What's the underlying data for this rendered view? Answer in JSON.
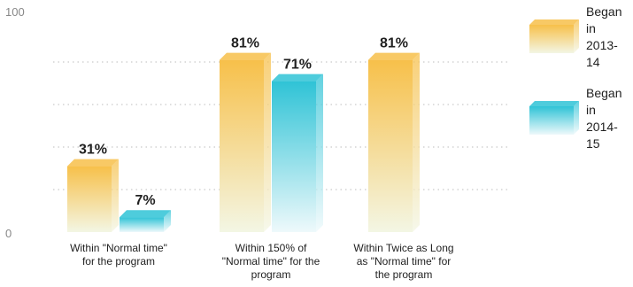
{
  "chart_data": {
    "type": "bar",
    "title": "",
    "xlabel": "",
    "ylabel": "",
    "ylim": [
      0,
      100
    ],
    "yticks": [
      0,
      100
    ],
    "grid": true,
    "legend_position": "right",
    "categories": [
      [
        "Within \"Normal time\"",
        "for the program"
      ],
      [
        "Within 150% of",
        "\"Normal time\" for the",
        "program"
      ],
      [
        "Within Twice as Long",
        "as \"Normal time\" for",
        "the program"
      ]
    ],
    "series": [
      {
        "name": [
          "Began",
          "in",
          "2013-",
          "14"
        ],
        "color_top": "#f7c04a",
        "color_bottom": "#f3f6e4",
        "values": [
          31,
          81,
          81
        ],
        "labels": [
          "31%",
          "81%",
          "81%"
        ]
      },
      {
        "name": [
          "Began",
          "in",
          "2014-",
          "15"
        ],
        "color_top": "#2fc3d6",
        "color_bottom": "#eef9fb",
        "values": [
          7,
          71,
          null
        ],
        "labels": [
          "7%",
          "71%",
          ""
        ]
      }
    ]
  }
}
